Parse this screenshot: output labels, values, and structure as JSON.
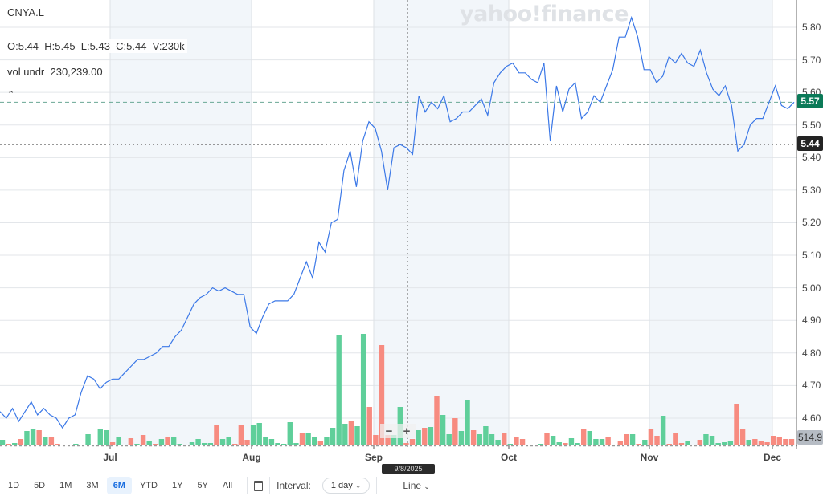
{
  "legend": {
    "symbol": "CNYA.L",
    "ohlcv": "O:5.44  H:5.45  L:5.43  C:5.44  V:230k",
    "vol_label": "vol undr",
    "vol_value": "230,239.00",
    "collapse_icon": "caret-up"
  },
  "logo": "yahoo!finance",
  "crosshair": {
    "date": "9/8/2025",
    "zoom_out": "−",
    "zoom_in": "+"
  },
  "markers": {
    "last_price": "5.57",
    "crosshair_price": "5.44",
    "volume_value": "514.9"
  },
  "colors": {
    "line": "#3b78e7",
    "up": "#5fcf9a",
    "down": "#f78b80",
    "last_badge": "#0b7a58",
    "crosshair_badge": "#232323",
    "volume_badge": "#b6bcc4",
    "shade": "#f2f6fa"
  },
  "toolbar": {
    "ranges": [
      "1D",
      "5D",
      "1M",
      "3M",
      "6M",
      "YTD",
      "1Y",
      "5Y",
      "All"
    ],
    "selected": "6M",
    "calendar_icon": "calendar",
    "interval_label": "Interval:",
    "interval_value": "1 day",
    "chart_type": "Line"
  },
  "chart_data": {
    "type": "line",
    "title": "",
    "ylim": [
      4.6,
      5.8
    ],
    "yticks": [
      "5.80",
      "5.70",
      "5.60",
      "5.50",
      "5.40",
      "5.30",
      "5.20",
      "5.10",
      "5.00",
      "4.90",
      "4.80",
      "4.70",
      "4.60"
    ],
    "xticks": [
      "Jul",
      "Aug",
      "Sep",
      "Oct",
      "Nov",
      "Dec"
    ],
    "grid": true,
    "close": [
      4.62,
      4.6,
      4.63,
      4.59,
      4.62,
      4.65,
      4.61,
      4.63,
      4.61,
      4.6,
      4.57,
      4.6,
      4.61,
      4.68,
      4.73,
      4.72,
      4.69,
      4.71,
      4.72,
      4.72,
      4.74,
      4.76,
      4.78,
      4.78,
      4.79,
      4.8,
      4.82,
      4.82,
      4.85,
      4.87,
      4.91,
      4.95,
      4.97,
      4.98,
      5.0,
      4.99,
      5.0,
      4.99,
      4.98,
      4.98,
      4.88,
      4.86,
      4.91,
      4.95,
      4.96,
      4.96,
      4.96,
      4.98,
      5.03,
      5.08,
      5.03,
      5.14,
      5.11,
      5.2,
      5.21,
      5.36,
      5.42,
      5.31,
      5.45,
      5.51,
      5.49,
      5.42,
      5.3,
      5.43,
      5.44,
      5.43,
      5.41,
      5.59,
      5.54,
      5.57,
      5.55,
      5.59,
      5.51,
      5.52,
      5.54,
      5.54,
      5.56,
      5.58,
      5.53,
      5.63,
      5.66,
      5.68,
      5.69,
      5.66,
      5.66,
      5.64,
      5.63,
      5.69,
      5.45,
      5.62,
      5.54,
      5.61,
      5.63,
      5.52,
      5.54,
      5.59,
      5.57,
      5.62,
      5.67,
      5.77,
      5.77,
      5.83,
      5.77,
      5.67,
      5.67,
      5.63,
      5.65,
      5.71,
      5.69,
      5.72,
      5.69,
      5.68,
      5.73,
      5.66,
      5.61,
      5.59,
      5.62,
      5.56,
      5.42,
      5.44,
      5.5,
      5.52,
      5.52,
      5.57,
      5.62,
      5.56,
      5.55,
      5.57
    ],
    "volume_k": [
      35,
      10,
      15,
      40,
      90,
      100,
      95,
      55,
      55,
      10,
      5,
      0,
      10,
      5,
      70,
      0,
      100,
      95,
      20,
      50,
      5,
      45,
      10,
      65,
      25,
      10,
      40,
      55,
      55,
      10,
      0,
      20,
      40,
      15,
      15,
      125,
      40,
      50,
      10,
      125,
      35,
      130,
      140,
      50,
      40,
      15,
      10,
      145,
      15,
      75,
      75,
      55,
      30,
      55,
      110,
      690,
      135,
      155,
      120,
      695,
      240,
      65,
      625,
      65,
      65,
      240,
      15,
      40,
      95,
      110,
      115,
      310,
      190,
      70,
      170,
      90,
      280,
      95,
      70,
      120,
      70,
      35,
      80,
      10,
      50,
      40,
      5,
      5,
      10,
      75,
      60,
      20,
      15,
      45,
      15,
      105,
      90,
      40,
      40,
      50,
      0,
      30,
      70,
      70,
      10,
      35,
      105,
      60,
      185,
      10,
      75,
      15,
      25,
      5,
      35,
      70,
      60,
      15,
      20,
      30,
      260,
      105,
      35,
      40,
      25,
      20,
      60,
      55,
      40,
      40
    ],
    "volume_dir": "grgrggrgrrrggggrggrggrgrgrgrgggggggrggrrrggggggggrggrggggrggrrrrggrrgrgrggrggrggggrgrrgrgrggrggrgggrgrrgrgrrgrrrgrrgggggrrg"
  }
}
